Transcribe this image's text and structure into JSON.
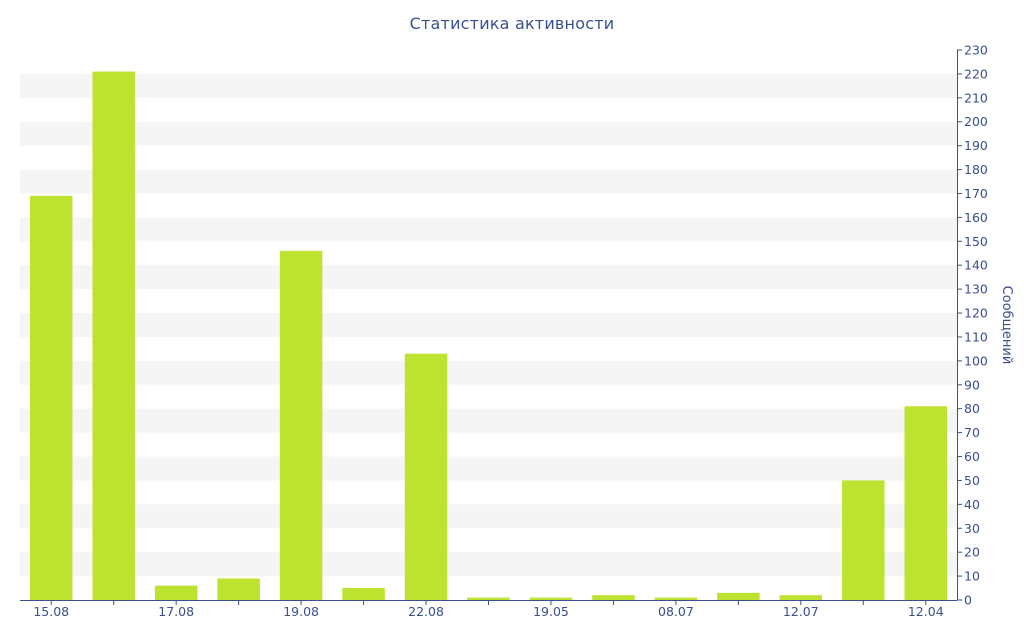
{
  "chart_data": {
    "type": "bar",
    "title": "Статистика активности",
    "xlabel": "",
    "ylabel": "Сообщений",
    "ylim": [
      0,
      230
    ],
    "ytick_step": 10,
    "y_axis_position": "right",
    "grid": "horizontal bands",
    "bar_color": "#bde22f",
    "band_color": "#f5f5f5",
    "axis_color": "#3a4f8f",
    "categories": [
      "15.08",
      "",
      "17.08",
      "",
      "19.08",
      "",
      "22.08",
      "",
      "19.05",
      "",
      "08.07",
      "",
      "12.07",
      "",
      "12.04"
    ],
    "values": [
      169,
      221,
      6,
      9,
      146,
      5,
      103,
      1,
      1,
      2,
      1,
      3,
      2,
      50,
      81
    ]
  }
}
